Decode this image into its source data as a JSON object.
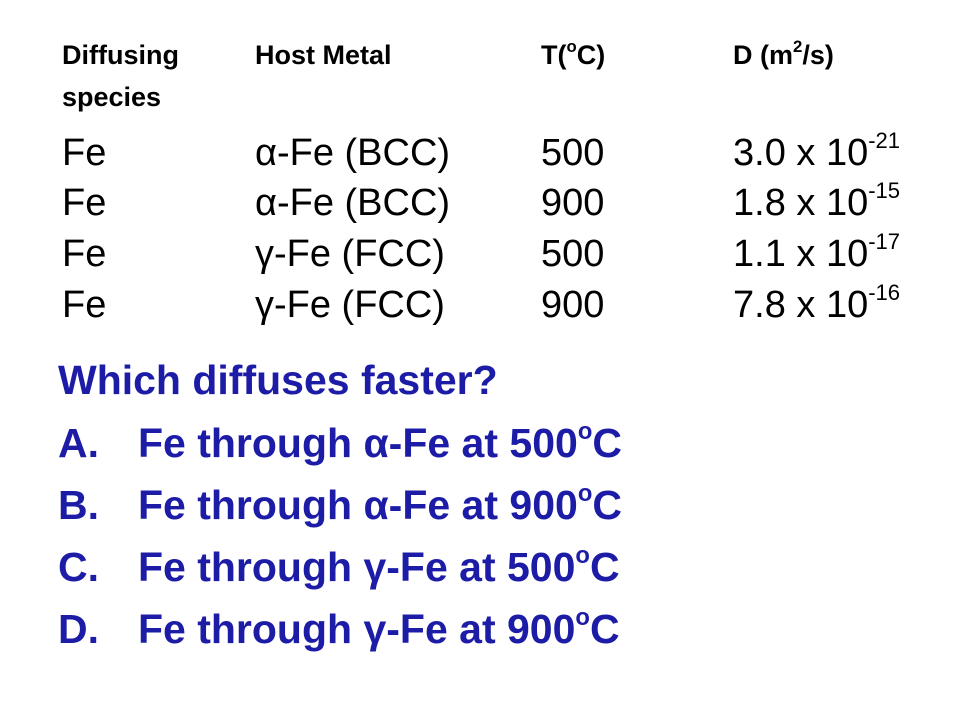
{
  "header": {
    "species_line1": "Diffusing",
    "species_line2": "species",
    "host": "Host Metal",
    "temp_base": "T(",
    "temp_sup": "o",
    "temp_unit": "C)",
    "diff_base": "D (m",
    "diff_sup": "2",
    "diff_unit": "/s)"
  },
  "rows": [
    {
      "species": "Fe",
      "host": "α-Fe (BCC)",
      "temp": "500",
      "d_mantissa": "3.0 x 10",
      "d_exp": "-21"
    },
    {
      "species": "Fe",
      "host": "α-Fe (BCC)",
      "temp": "900",
      "d_mantissa": "1.8 x 10",
      "d_exp": "-15"
    },
    {
      "species": "Fe",
      "host": "γ-Fe (FCC)",
      "temp": "500",
      "d_mantissa": "1.1 x 10",
      "d_exp": "-17"
    },
    {
      "species": "Fe",
      "host": "γ-Fe (FCC)",
      "temp": "900",
      "d_mantissa": "7.8 x 10",
      "d_exp": "-16"
    }
  ],
  "question": "Which diffuses faster?",
  "options": [
    {
      "letter": "A.",
      "text": "Fe through α-Fe at 500",
      "sup": "o",
      "unit": "C"
    },
    {
      "letter": "B.",
      "text": "Fe through α-Fe at 900",
      "sup": "o",
      "unit": "C"
    },
    {
      "letter": "C.",
      "text": "Fe through γ-Fe at 500",
      "sup": "o",
      "unit": "C"
    },
    {
      "letter": "D.",
      "text": "Fe through γ-Fe at 900",
      "sup": "o",
      "unit": "C"
    }
  ],
  "colors": {
    "text": "#000000",
    "accent": "#1c1ca6",
    "background": "#ffffff"
  }
}
